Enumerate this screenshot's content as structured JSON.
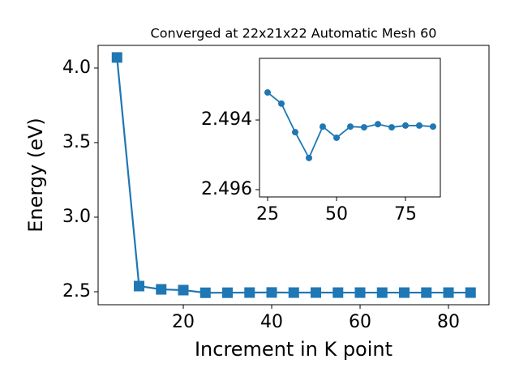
{
  "chart_data": [
    {
      "type": "line",
      "title": "Converged at 22x21x22 Automatic Mesh 60",
      "x_label": "Increment in K point",
      "y_label": "Energy (eV)",
      "x": [
        5,
        10,
        15,
        20,
        25,
        30,
        35,
        40,
        45,
        50,
        55,
        60,
        65,
        70,
        75,
        80,
        85
      ],
      "series": [
        {
          "color": "#1f77b4",
          "marker": "square",
          "values": [
            4.071,
            2.538,
            2.516,
            2.511,
            2.4932,
            2.4935,
            2.4944,
            2.4951,
            2.4942,
            2.4945,
            2.4942,
            2.4942,
            2.4941,
            2.4942,
            2.4942,
            2.4942,
            2.4942
          ]
        }
      ],
      "xlim": [
        0.73,
        89.17
      ],
      "xticks": [
        20,
        40,
        60,
        80
      ],
      "ylim": [
        2.413,
        4.152
      ],
      "yticks": [
        {
          "value": 2.5,
          "label": "2.5"
        },
        {
          "value": 3,
          "label": "3.0"
        },
        {
          "value": 3.5,
          "label": "3.5"
        },
        {
          "value": 4,
          "label": "4.0"
        }
      ]
    },
    {
      "type": "line",
      "x": [
        25,
        30,
        35,
        40,
        45,
        50,
        55,
        60,
        65,
        70,
        75,
        80,
        85
      ],
      "series": [
        {
          "color": "#1f77b4",
          "marker": "circle",
          "values": [
            2.49321,
            2.49353,
            2.49435,
            2.49509,
            2.49419,
            2.49451,
            2.49419,
            2.49421,
            2.49412,
            2.49421,
            2.49416,
            2.49416,
            2.49419
          ]
        }
      ],
      "xlim": [
        22.06,
        87.65
      ],
      "xticks": [
        25,
        50,
        75
      ],
      "ylim": [
        2.49621,
        2.49223
      ],
      "yticks": [
        2.494,
        2.496
      ]
    }
  ]
}
